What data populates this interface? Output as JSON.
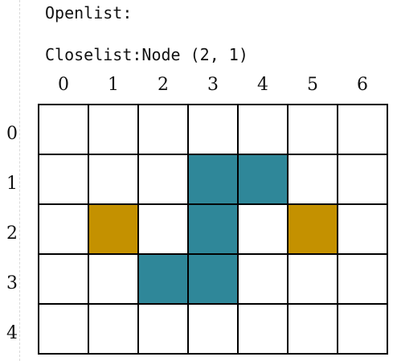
{
  "openlist": {
    "label": "Openlist:",
    "value": ""
  },
  "closelist": {
    "label": "Closelist:",
    "value": "Node (2, 1)"
  },
  "grid": {
    "col_labels": [
      "0",
      "1",
      "2",
      "3",
      "4",
      "5",
      "6"
    ],
    "row_labels": [
      "0",
      "1",
      "2",
      "3",
      "4"
    ],
    "rows": 5,
    "cols": 7,
    "colors": {
      "empty": "#ffffff",
      "obstacle": "#2f8799",
      "node": "#c49100"
    },
    "obstacles": [
      {
        "row": 1,
        "col": 3
      },
      {
        "row": 1,
        "col": 4
      },
      {
        "row": 2,
        "col": 3
      },
      {
        "row": 3,
        "col": 2
      },
      {
        "row": 3,
        "col": 3
      }
    ],
    "nodes": [
      {
        "row": 2,
        "col": 1
      },
      {
        "row": 2,
        "col": 5
      }
    ]
  }
}
